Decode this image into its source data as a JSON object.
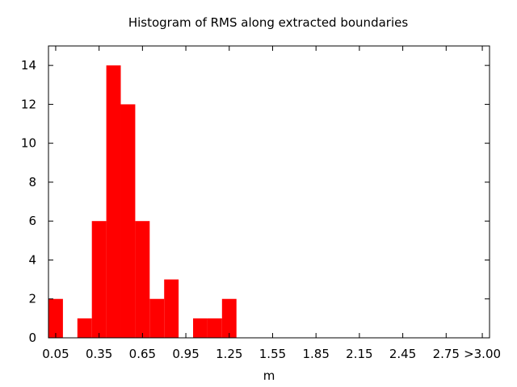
{
  "chart_data": {
    "type": "bar",
    "title": "Histogram of RMS along extracted boundaries",
    "xlabel": "m",
    "ylabel": "",
    "bin_width": 0.1,
    "bins": [
      {
        "x": 0.05,
        "count": 2
      },
      {
        "x": 0.15,
        "count": 0
      },
      {
        "x": 0.25,
        "count": 1
      },
      {
        "x": 0.35,
        "count": 6
      },
      {
        "x": 0.45,
        "count": 14
      },
      {
        "x": 0.55,
        "count": 12
      },
      {
        "x": 0.65,
        "count": 6
      },
      {
        "x": 0.75,
        "count": 2
      },
      {
        "x": 0.85,
        "count": 3
      },
      {
        "x": 0.95,
        "count": 0
      },
      {
        "x": 1.05,
        "count": 1
      },
      {
        "x": 1.15,
        "count": 1
      },
      {
        "x": 1.25,
        "count": 2
      }
    ],
    "xlim": [
      0.0,
      3.05
    ],
    "ylim": [
      0,
      15
    ],
    "x_ticks": [
      {
        "value": 0.05,
        "label": "0.05"
      },
      {
        "value": 0.35,
        "label": "0.35"
      },
      {
        "value": 0.65,
        "label": "0.65"
      },
      {
        "value": 0.95,
        "label": "0.95"
      },
      {
        "value": 1.25,
        "label": "1.25"
      },
      {
        "value": 1.55,
        "label": "1.55"
      },
      {
        "value": 1.85,
        "label": "1.85"
      },
      {
        "value": 2.15,
        "label": "2.15"
      },
      {
        "value": 2.45,
        "label": "2.45"
      },
      {
        "value": 2.75,
        "label": "2.75"
      },
      {
        "value": 3.0,
        "label": ">3.00"
      }
    ],
    "y_ticks": [
      {
        "value": 0,
        "label": "0"
      },
      {
        "value": 2,
        "label": "2"
      },
      {
        "value": 4,
        "label": "4"
      },
      {
        "value": 6,
        "label": "6"
      },
      {
        "value": 8,
        "label": "8"
      },
      {
        "value": 10,
        "label": "10"
      },
      {
        "value": 12,
        "label": "12"
      },
      {
        "value": 14,
        "label": "14"
      }
    ],
    "grid": false,
    "legend": "none",
    "colors": {
      "bar": "#ff0000",
      "axis": "#000000",
      "background": "#ffffff"
    }
  }
}
